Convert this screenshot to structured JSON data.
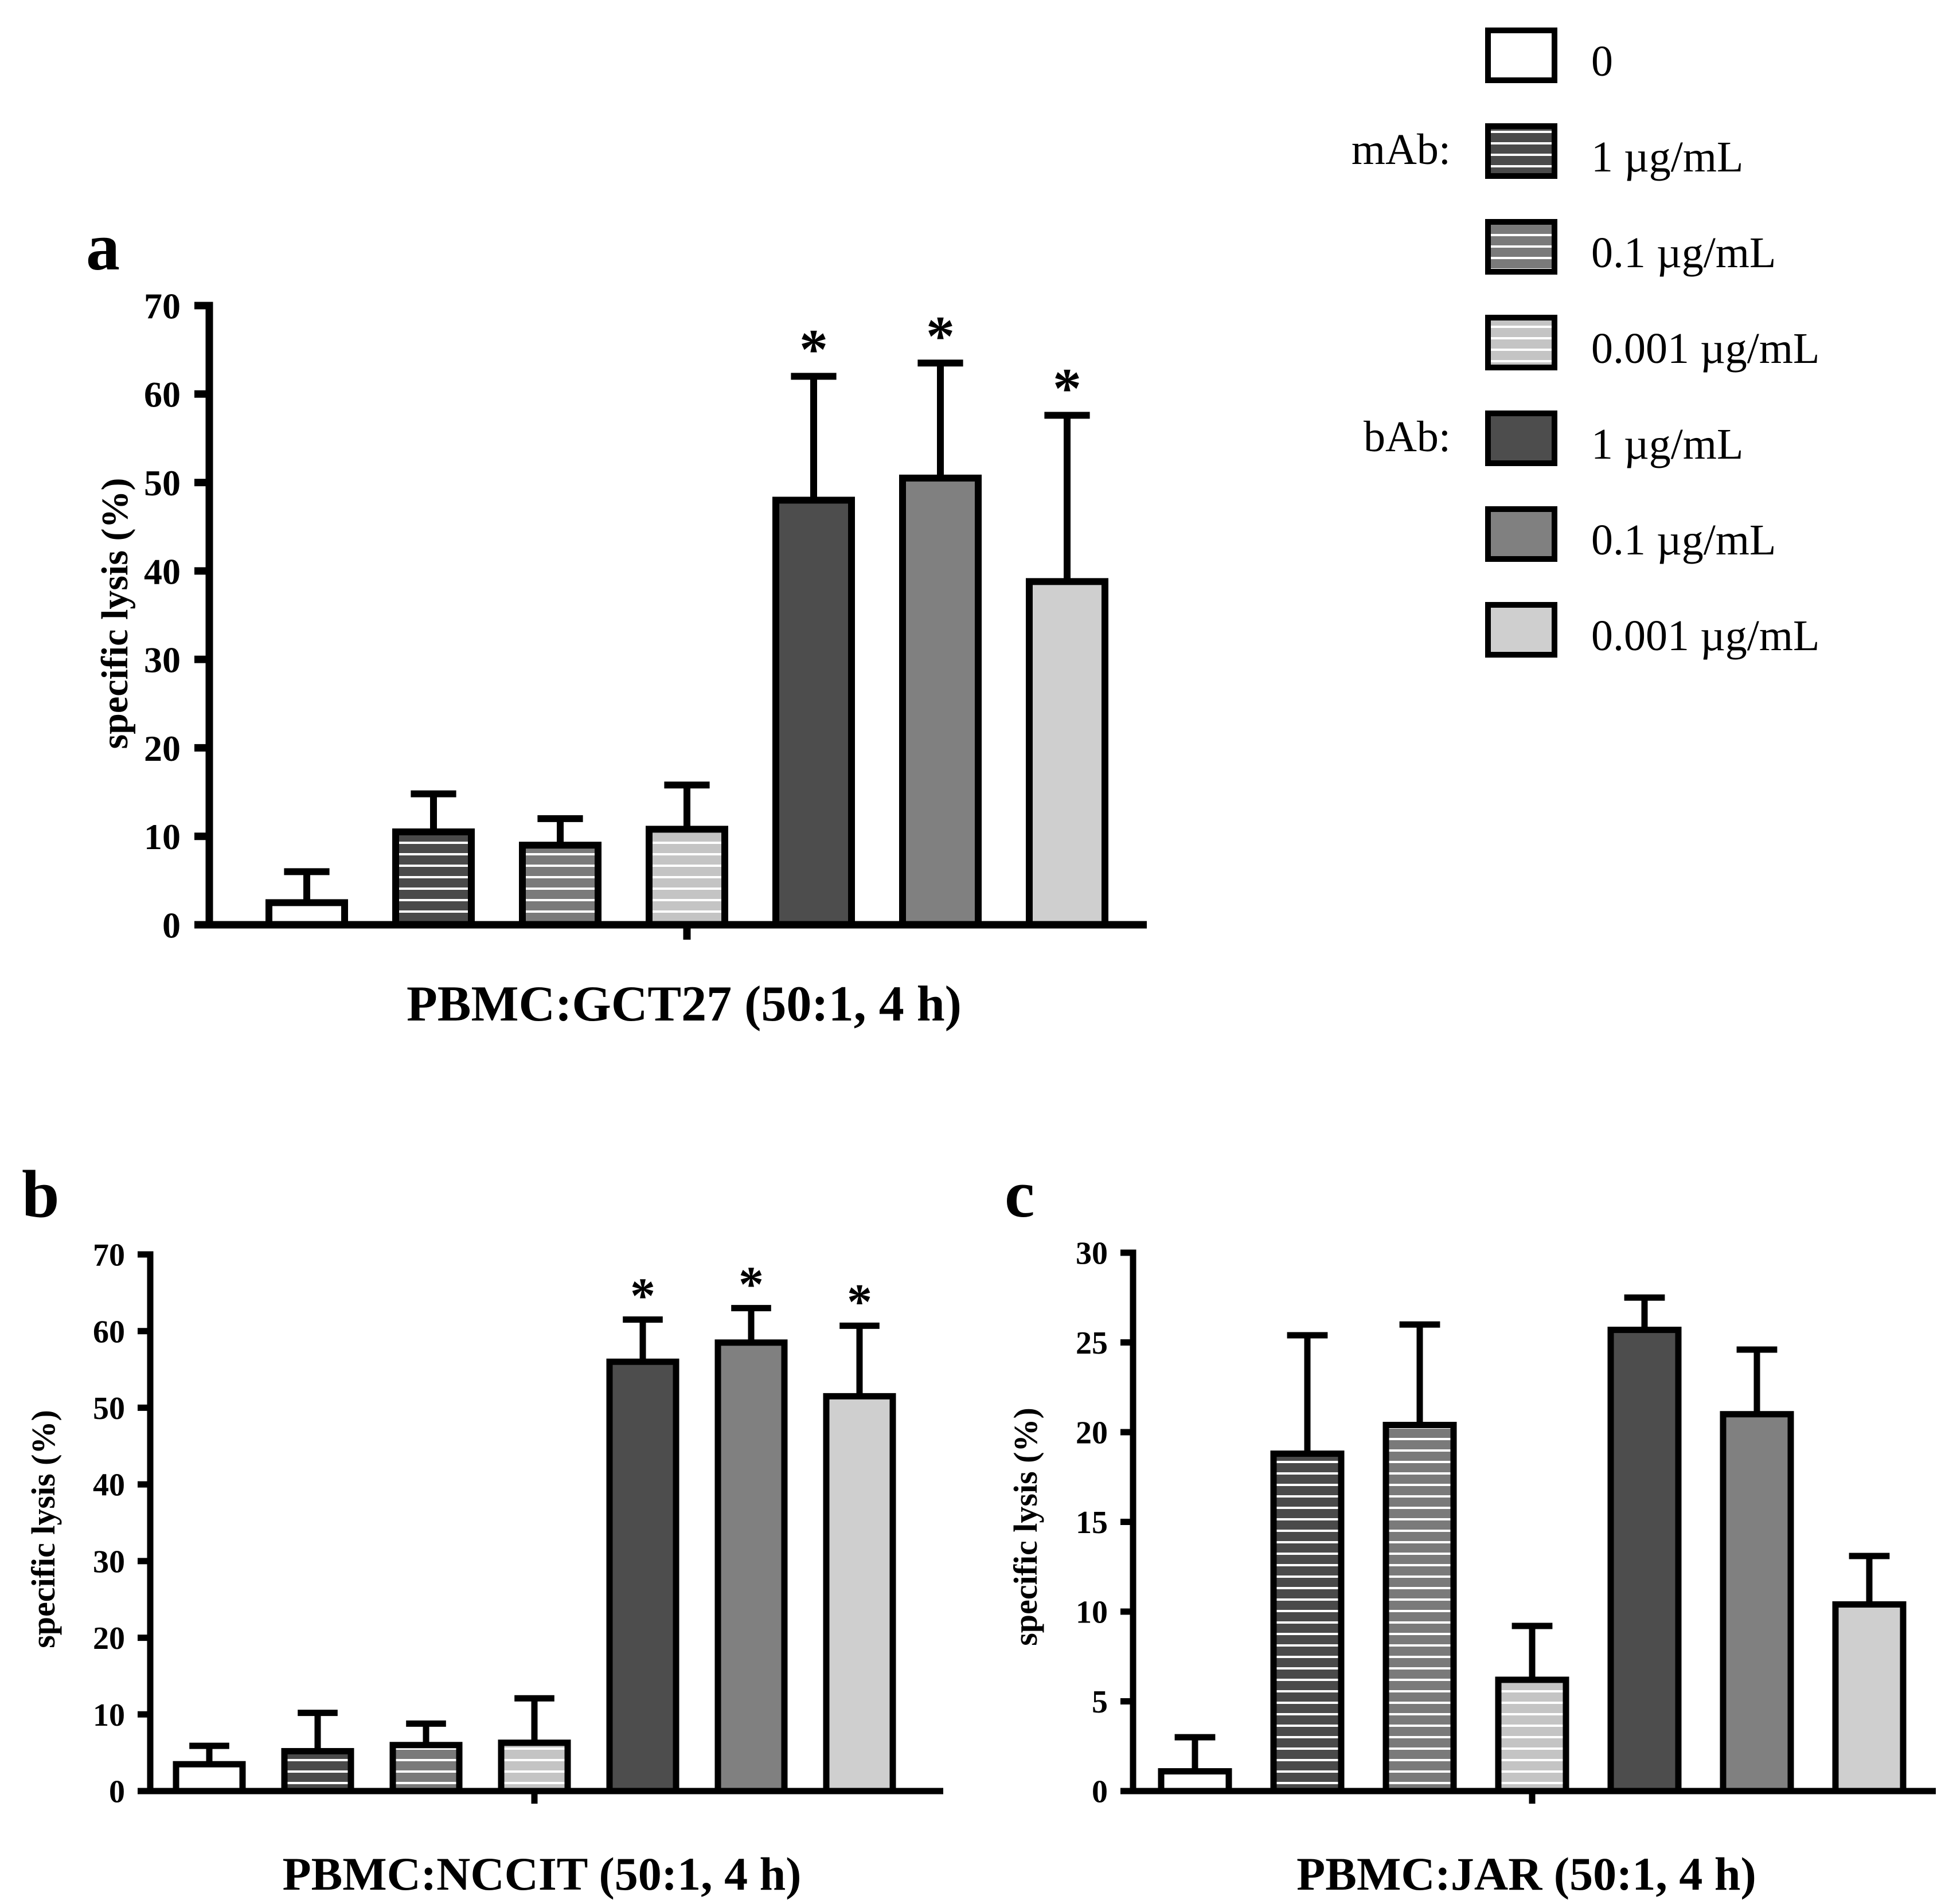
{
  "legend": {
    "group_labels": {
      "mAb": "mAb:",
      "bAb": "bAb:"
    },
    "items": [
      {
        "label": "0",
        "group": null,
        "pattern": "white"
      },
      {
        "label": "1 µg/mL",
        "group": "mAb",
        "pattern": "hatch-dark"
      },
      {
        "label": "0.1 µg/mL",
        "group": "mAb",
        "pattern": "hatch-mid"
      },
      {
        "label": "0.001 µg/mL",
        "group": "mAb",
        "pattern": "hatch-light"
      },
      {
        "label": "1 µg/mL",
        "group": "bAb",
        "pattern": "solid-dark"
      },
      {
        "label": "0.1 µg/mL",
        "group": "bAb",
        "pattern": "solid-mid"
      },
      {
        "label": "0.001 µg/mL",
        "group": "bAb",
        "pattern": "solid-light"
      }
    ]
  },
  "colors": {
    "white": "#ffffff",
    "hatch-dark": "#4a4a4a",
    "hatch-mid": "#7a7a7a",
    "hatch-light": "#c4c4c4",
    "solid-dark": "#4d4d4d",
    "solid-mid": "#808080",
    "solid-light": "#cfcfcf",
    "stroke": "#000000"
  },
  "chart_data": [
    {
      "panel": "a",
      "type": "bar",
      "title": "",
      "xlabel": "PBMC:GCT27 (50:1, 4 h)",
      "ylabel": "specific lysis (%)",
      "ylim": [
        0,
        70
      ],
      "yticks": [
        0,
        10,
        20,
        30,
        40,
        50,
        60,
        70
      ],
      "categories": [
        "0",
        "mAb 1 µg/mL",
        "mAb 0.1 µg/mL",
        "mAb 0.001 µg/mL",
        "bAb 1 µg/mL",
        "bAb 0.1 µg/mL",
        "bAb 0.001 µg/mL"
      ],
      "values": [
        2.5,
        10.5,
        9.0,
        10.8,
        48.0,
        50.5,
        38.8
      ],
      "errors": [
        3.5,
        4.3,
        3.0,
        5.0,
        14.0,
        13.0,
        18.8
      ],
      "significance": [
        "",
        "",
        "",
        "",
        "*",
        "*",
        "*"
      ]
    },
    {
      "panel": "b",
      "type": "bar",
      "title": "",
      "xlabel": "PBMC:NCCIT (50:1, 4 h)",
      "ylabel": "specific lysis (%)",
      "ylim": [
        0,
        70
      ],
      "yticks": [
        0,
        10,
        20,
        30,
        40,
        50,
        60,
        70
      ],
      "categories": [
        "0",
        "mAb 1 µg/mL",
        "mAb 0.1 µg/mL",
        "mAb 0.001 µg/mL",
        "bAb 1 µg/mL",
        "bAb 0.1 µg/mL",
        "bAb 0.001 µg/mL"
      ],
      "values": [
        3.5,
        5.2,
        6.0,
        6.3,
        56.0,
        58.5,
        51.5
      ],
      "errors": [
        2.4,
        5.0,
        2.8,
        5.8,
        5.5,
        4.5,
        9.2
      ],
      "significance": [
        "",
        "",
        "",
        "",
        "*",
        "*",
        "*"
      ]
    },
    {
      "panel": "c",
      "type": "bar",
      "title": "",
      "xlabel": "PBMC:JAR (50:1, 4 h)",
      "ylabel": "specific lysis (%)",
      "ylim": [
        0,
        30
      ],
      "yticks": [
        0,
        5,
        10,
        15,
        20,
        25,
        30
      ],
      "categories": [
        "0",
        "mAb 1 µg/mL",
        "mAb 0.1 µg/mL",
        "mAb 0.001 µg/mL",
        "bAb 1 µg/mL",
        "bAb 0.1 µg/mL",
        "bAb 0.001 µg/mL"
      ],
      "values": [
        1.1,
        18.8,
        20.4,
        6.2,
        25.7,
        21.0,
        10.4
      ],
      "errors": [
        1.9,
        6.6,
        5.6,
        3.0,
        1.8,
        3.6,
        2.7
      ],
      "significance": [
        "",
        "",
        "",
        "",
        "",
        "",
        ""
      ]
    }
  ]
}
